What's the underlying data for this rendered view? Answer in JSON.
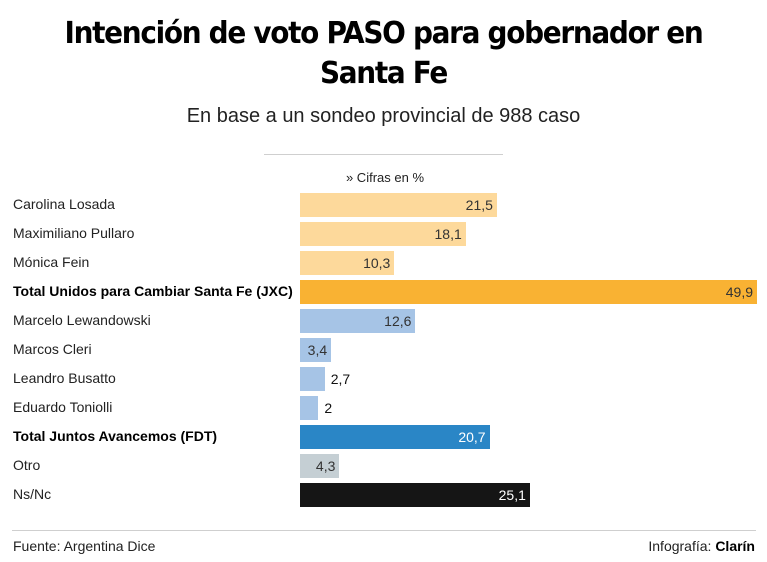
{
  "header": {
    "title": "Intención de voto PASO para gobernador en Santa Fe",
    "subtitle": "En base a un sondeo provincial de 988 caso",
    "units": "» Cifras en %"
  },
  "footer": {
    "source": "Fuente: Argentina Dice",
    "credit_prefix": "Infografía: ",
    "credit_brand": "Clarín"
  },
  "colors": {
    "jxc_candidate": "#fdd99b",
    "jxc_total": "#f9b233",
    "fdt_candidate": "#a6c4e6",
    "fdt_total": "#2a86c6",
    "other": "#c5cfd4",
    "nsnc": "#151515"
  },
  "chart_data": {
    "type": "bar",
    "orientation": "horizontal",
    "title": "Intención de voto PASO para gobernador en Santa Fe",
    "subtitle": "En base a un sondeo provincial de 988 caso",
    "unit_note": "» Cifras en %",
    "xlabel": "",
    "ylabel": "",
    "xlim": [
      0,
      50
    ],
    "grid": false,
    "legend": "none",
    "categories": [
      "Carolina Losada",
      "Maximiliano Pullaro",
      "Mónica Fein",
      "Total Unidos para Cambiar Santa Fe (JXC)",
      "Marcelo Lewandowski",
      "Marcos Cleri",
      "Leandro Busatto",
      "Eduardo Toniolli",
      "Total Juntos Avancemos (FDT)",
      "Otro",
      "Ns/Nc"
    ],
    "values": [
      21.5,
      18.1,
      10.3,
      49.9,
      12.6,
      3.4,
      2.7,
      2,
      20.7,
      4.3,
      25.1
    ],
    "value_labels": [
      "21,5",
      "18,1",
      "10,3",
      "49,9",
      "12,6",
      "3,4",
      "2,7",
      "2",
      "20,7",
      "4,3",
      "25,1"
    ],
    "bold": [
      false,
      false,
      false,
      true,
      false,
      false,
      false,
      false,
      true,
      false,
      false
    ],
    "color_keys": [
      "jxc_candidate",
      "jxc_candidate",
      "jxc_candidate",
      "jxc_total",
      "fdt_candidate",
      "fdt_candidate",
      "fdt_candidate",
      "fdt_candidate",
      "fdt_total",
      "other",
      "nsnc"
    ],
    "label_inside": [
      true,
      true,
      true,
      true,
      true,
      true,
      false,
      false,
      true,
      true,
      true
    ],
    "label_colors": [
      "#333333",
      "#333333",
      "#333333",
      "#333333",
      "#333333",
      "#333333",
      "#111111",
      "#111111",
      "#ffffff",
      "#333333",
      "#ffffff"
    ]
  }
}
